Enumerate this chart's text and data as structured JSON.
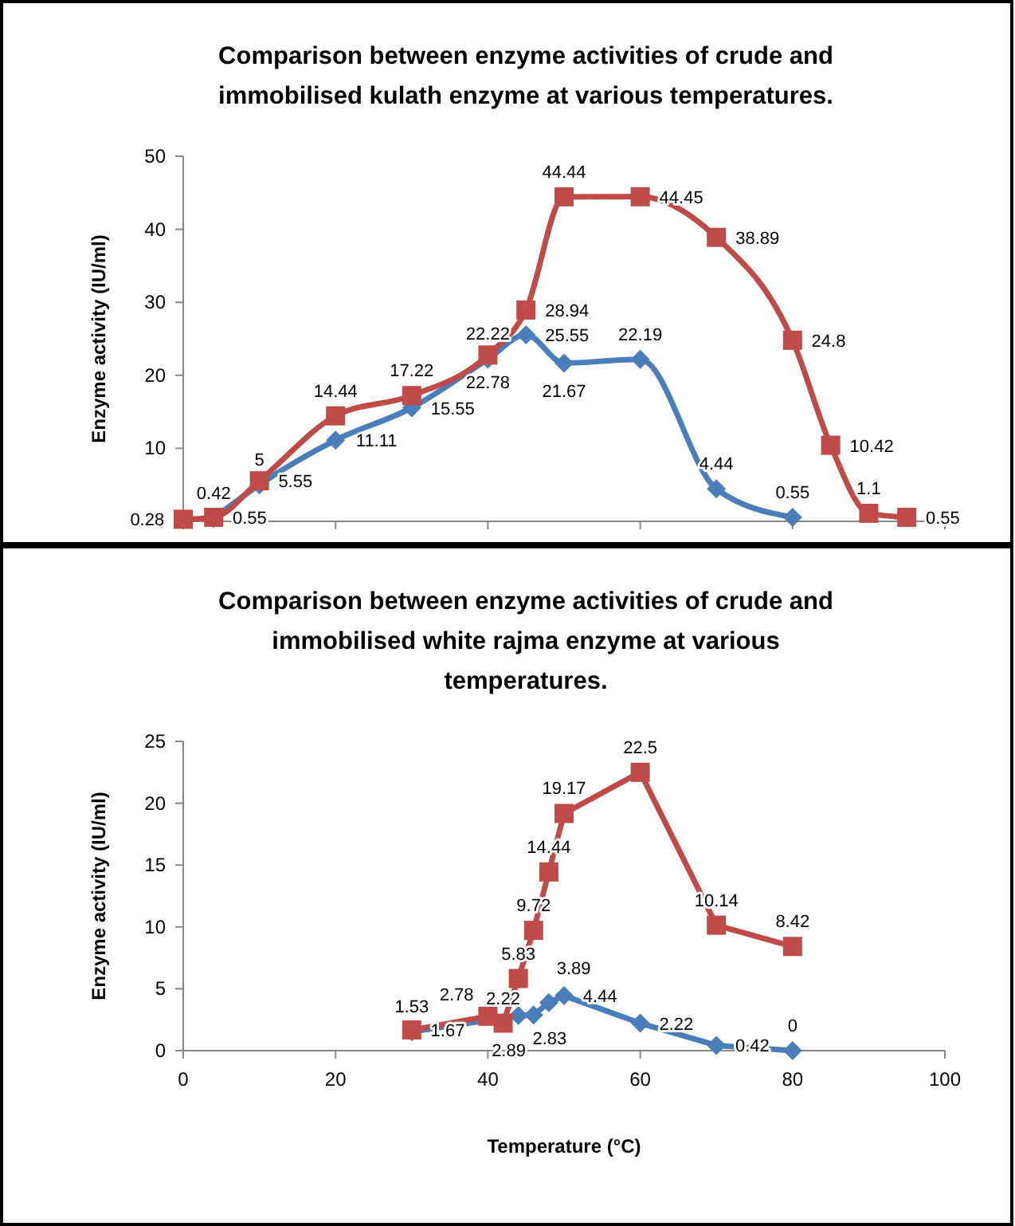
{
  "chart_data": [
    {
      "type": "line",
      "title": "Comparison between enzyme activities of crude and immobilised kulath enzyme at various temperatures.",
      "ylabel": "Enzyme activity (IU/ml)",
      "xlim": [
        0,
        100
      ],
      "xticks": [
        0,
        20,
        40,
        60,
        80,
        100
      ],
      "ylim": [
        0,
        50
      ],
      "yticks": [
        0,
        10,
        20,
        30,
        40,
        50
      ],
      "tick_labels": "y",
      "grid": false,
      "data_labels": true,
      "series": [
        {
          "color": "#4a7ebb",
          "marker": "diamond",
          "x": [
            4,
            10,
            20,
            30,
            40,
            45,
            50,
            60,
            70,
            80
          ],
          "values": [
            0.42,
            5,
            11.11,
            15.55,
            22.22,
            25.55,
            21.67,
            22.19,
            4.44,
            0.55
          ]
        },
        {
          "color": "#be4b48",
          "marker": "square",
          "x": [
            0,
            4,
            10,
            20,
            30,
            40,
            45,
            50,
            60,
            70,
            80,
            85,
            90,
            95
          ],
          "values": [
            0.28,
            0.55,
            5.55,
            14.44,
            17.22,
            22.78,
            28.94,
            44.44,
            44.45,
            38.89,
            24.8,
            10.42,
            1.1,
            0.55
          ]
        }
      ]
    },
    {
      "type": "line",
      "title": "Comparison between enzyme activities of crude and immobilised white rajma enzyme at various temperatures.",
      "xlabel": "Temperature (°C)",
      "ylabel": "Enzyme activity (IU/ml)",
      "xlim": [
        0,
        100
      ],
      "xticks": [
        0,
        20,
        40,
        60,
        80,
        100
      ],
      "ylim": [
        0,
        25
      ],
      "yticks": [
        0,
        5,
        10,
        15,
        20,
        25
      ],
      "grid": false,
      "data_labels": true,
      "series": [
        {
          "color": "#4a7ebb",
          "marker": "diamond",
          "x": [
            30,
            40,
            42,
            44,
            46,
            48,
            50,
            60,
            70,
            80
          ],
          "values": [
            1.53,
            null,
            null,
            2.83,
            2.89,
            3.89,
            4.44,
            2.22,
            0.42,
            0
          ]
        },
        {
          "color": "#be4b48",
          "marker": "square",
          "x": [
            30,
            40,
            42,
            44,
            46,
            48,
            50,
            60,
            70,
            80
          ],
          "values": [
            1.67,
            2.78,
            2.22,
            5.83,
            9.72,
            14.44,
            19.17,
            22.5,
            10.14,
            8.42
          ]
        }
      ]
    }
  ]
}
